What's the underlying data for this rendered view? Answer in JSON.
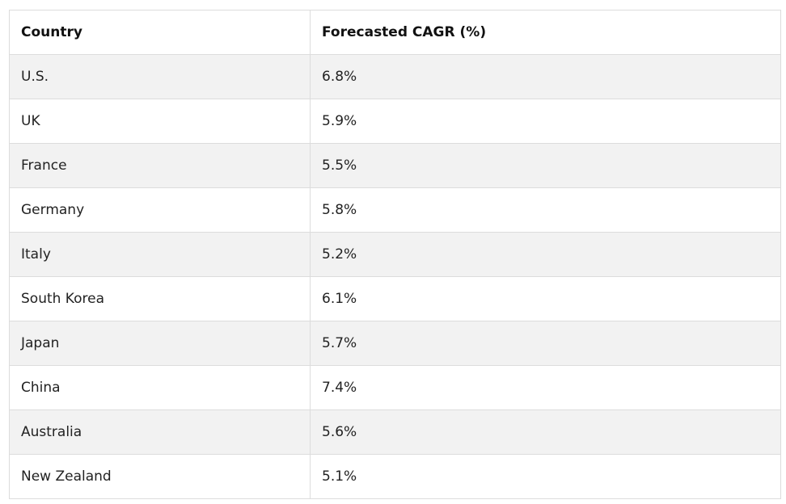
{
  "table": {
    "headers": {
      "country": "Country",
      "cagr": "Forecasted CAGR (%)"
    },
    "rows": [
      {
        "country": "U.S.",
        "cagr": "6.8%"
      },
      {
        "country": "UK",
        "cagr": "5.9%"
      },
      {
        "country": "France",
        "cagr": "5.5%"
      },
      {
        "country": "Germany",
        "cagr": "5.8%"
      },
      {
        "country": "Italy",
        "cagr": "5.2%"
      },
      {
        "country": "South Korea",
        "cagr": "6.1%"
      },
      {
        "country": "Japan",
        "cagr": "5.7%"
      },
      {
        "country": "China",
        "cagr": "7.4%"
      },
      {
        "country": "Australia",
        "cagr": "5.6%"
      },
      {
        "country": "New Zealand",
        "cagr": "5.1%"
      }
    ]
  },
  "colors": {
    "border": "#dcdcdc",
    "row_stripe": "#f2f2f2",
    "row_plain": "#ffffff",
    "text": "#222222"
  }
}
